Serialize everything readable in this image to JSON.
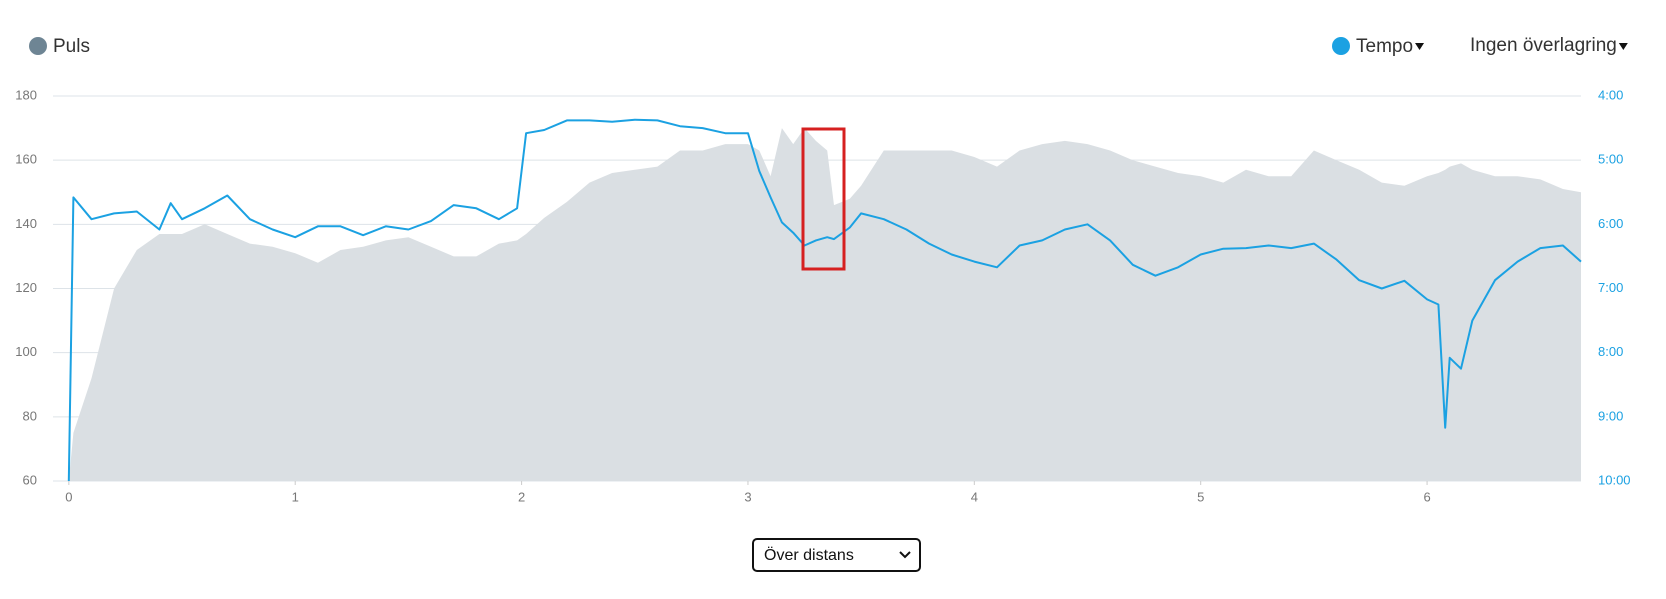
{
  "chart_data": {
    "type": "line",
    "x": [
      0,
      0.02,
      0.1,
      0.2,
      0.3,
      0.4,
      0.45,
      0.5,
      0.6,
      0.7,
      0.8,
      0.9,
      1.0,
      1.1,
      1.2,
      1.3,
      1.4,
      1.5,
      1.6,
      1.7,
      1.8,
      1.9,
      1.98,
      2.02,
      2.1,
      2.2,
      2.3,
      2.4,
      2.5,
      2.6,
      2.7,
      2.8,
      2.9,
      3.0,
      3.05,
      3.1,
      3.15,
      3.2,
      3.25,
      3.3,
      3.35,
      3.38,
      3.45,
      3.5,
      3.6,
      3.7,
      3.8,
      3.9,
      4.0,
      4.1,
      4.2,
      4.3,
      4.4,
      4.5,
      4.6,
      4.7,
      4.8,
      4.9,
      5.0,
      5.1,
      5.2,
      5.3,
      5.4,
      5.5,
      5.6,
      5.7,
      5.8,
      5.9,
      6.0,
      6.05,
      6.08,
      6.1,
      6.15,
      6.2,
      6.3,
      6.4,
      6.5,
      6.6,
      6.68
    ],
    "series": [
      {
        "name": "Puls",
        "style": "area",
        "color": "#dadfe3",
        "marker_color": "#6e8594",
        "values": [
          60,
          75,
          92,
          120,
          132,
          137,
          137,
          137,
          140,
          137,
          134,
          133,
          131,
          128,
          132,
          133,
          135,
          136,
          133,
          130,
          130,
          134,
          135,
          137,
          142,
          147,
          153,
          156,
          157,
          158,
          163,
          163,
          165,
          165,
          163,
          155,
          170,
          165,
          170,
          166,
          163,
          146,
          148,
          152,
          163,
          163,
          163,
          163,
          161,
          158,
          163,
          165,
          166,
          165,
          163,
          160,
          158,
          156,
          155,
          153,
          157,
          155,
          155,
          163,
          160,
          157,
          153,
          152,
          155,
          156,
          157,
          158,
          159,
          157,
          155,
          155,
          154,
          151,
          150
        ]
      },
      {
        "name": "Tempo",
        "style": "line",
        "axis": "y2",
        "color": "#1ba1e2",
        "marker_color": "#1ba1e2",
        "values": [
          10,
          5.58,
          5.92,
          5.83,
          5.8,
          6.08,
          5.67,
          5.92,
          5.75,
          5.55,
          5.92,
          6.08,
          6.2,
          6.03,
          6.03,
          6.17,
          6.03,
          6.08,
          5.95,
          5.7,
          5.75,
          5.92,
          5.75,
          4.58,
          4.53,
          4.38,
          4.38,
          4.4,
          4.37,
          4.38,
          4.47,
          4.5,
          4.58,
          4.58,
          5.17,
          5.58,
          5.97,
          6.13,
          6.33,
          6.25,
          6.2,
          6.23,
          6.05,
          5.83,
          5.92,
          6.08,
          6.3,
          6.47,
          6.58,
          6.67,
          6.33,
          6.25,
          6.08,
          6.0,
          6.25,
          6.63,
          6.8,
          6.67,
          6.47,
          6.38,
          6.37,
          6.33,
          6.37,
          6.3,
          6.55,
          6.87,
          7.0,
          6.88,
          7.17,
          7.25,
          9.17,
          8.08,
          8.25,
          7.5,
          6.87,
          6.58,
          6.37,
          6.33,
          6.58
        ]
      }
    ],
    "xlim": [
      -0.07,
      6.68
    ],
    "xticks": [
      0,
      1,
      2,
      3,
      4,
      5,
      6
    ],
    "ylim": [
      60,
      180
    ],
    "yticks": [
      60,
      80,
      100,
      120,
      140,
      160,
      180
    ],
    "y2lim": [
      10,
      4
    ],
    "y2ticks": [
      {
        "value": 4,
        "label": "4:00"
      },
      {
        "value": 5,
        "label": "5:00"
      },
      {
        "value": 6,
        "label": "6:00"
      },
      {
        "value": 7,
        "label": "7:00"
      },
      {
        "value": 8,
        "label": "8:00"
      },
      {
        "value": 9,
        "label": "9:00"
      },
      {
        "value": 10,
        "label": "10:00"
      }
    ],
    "grid": true
  },
  "controls": {
    "overlay": "Ingen överlagring",
    "x_mode": "Över distans"
  }
}
